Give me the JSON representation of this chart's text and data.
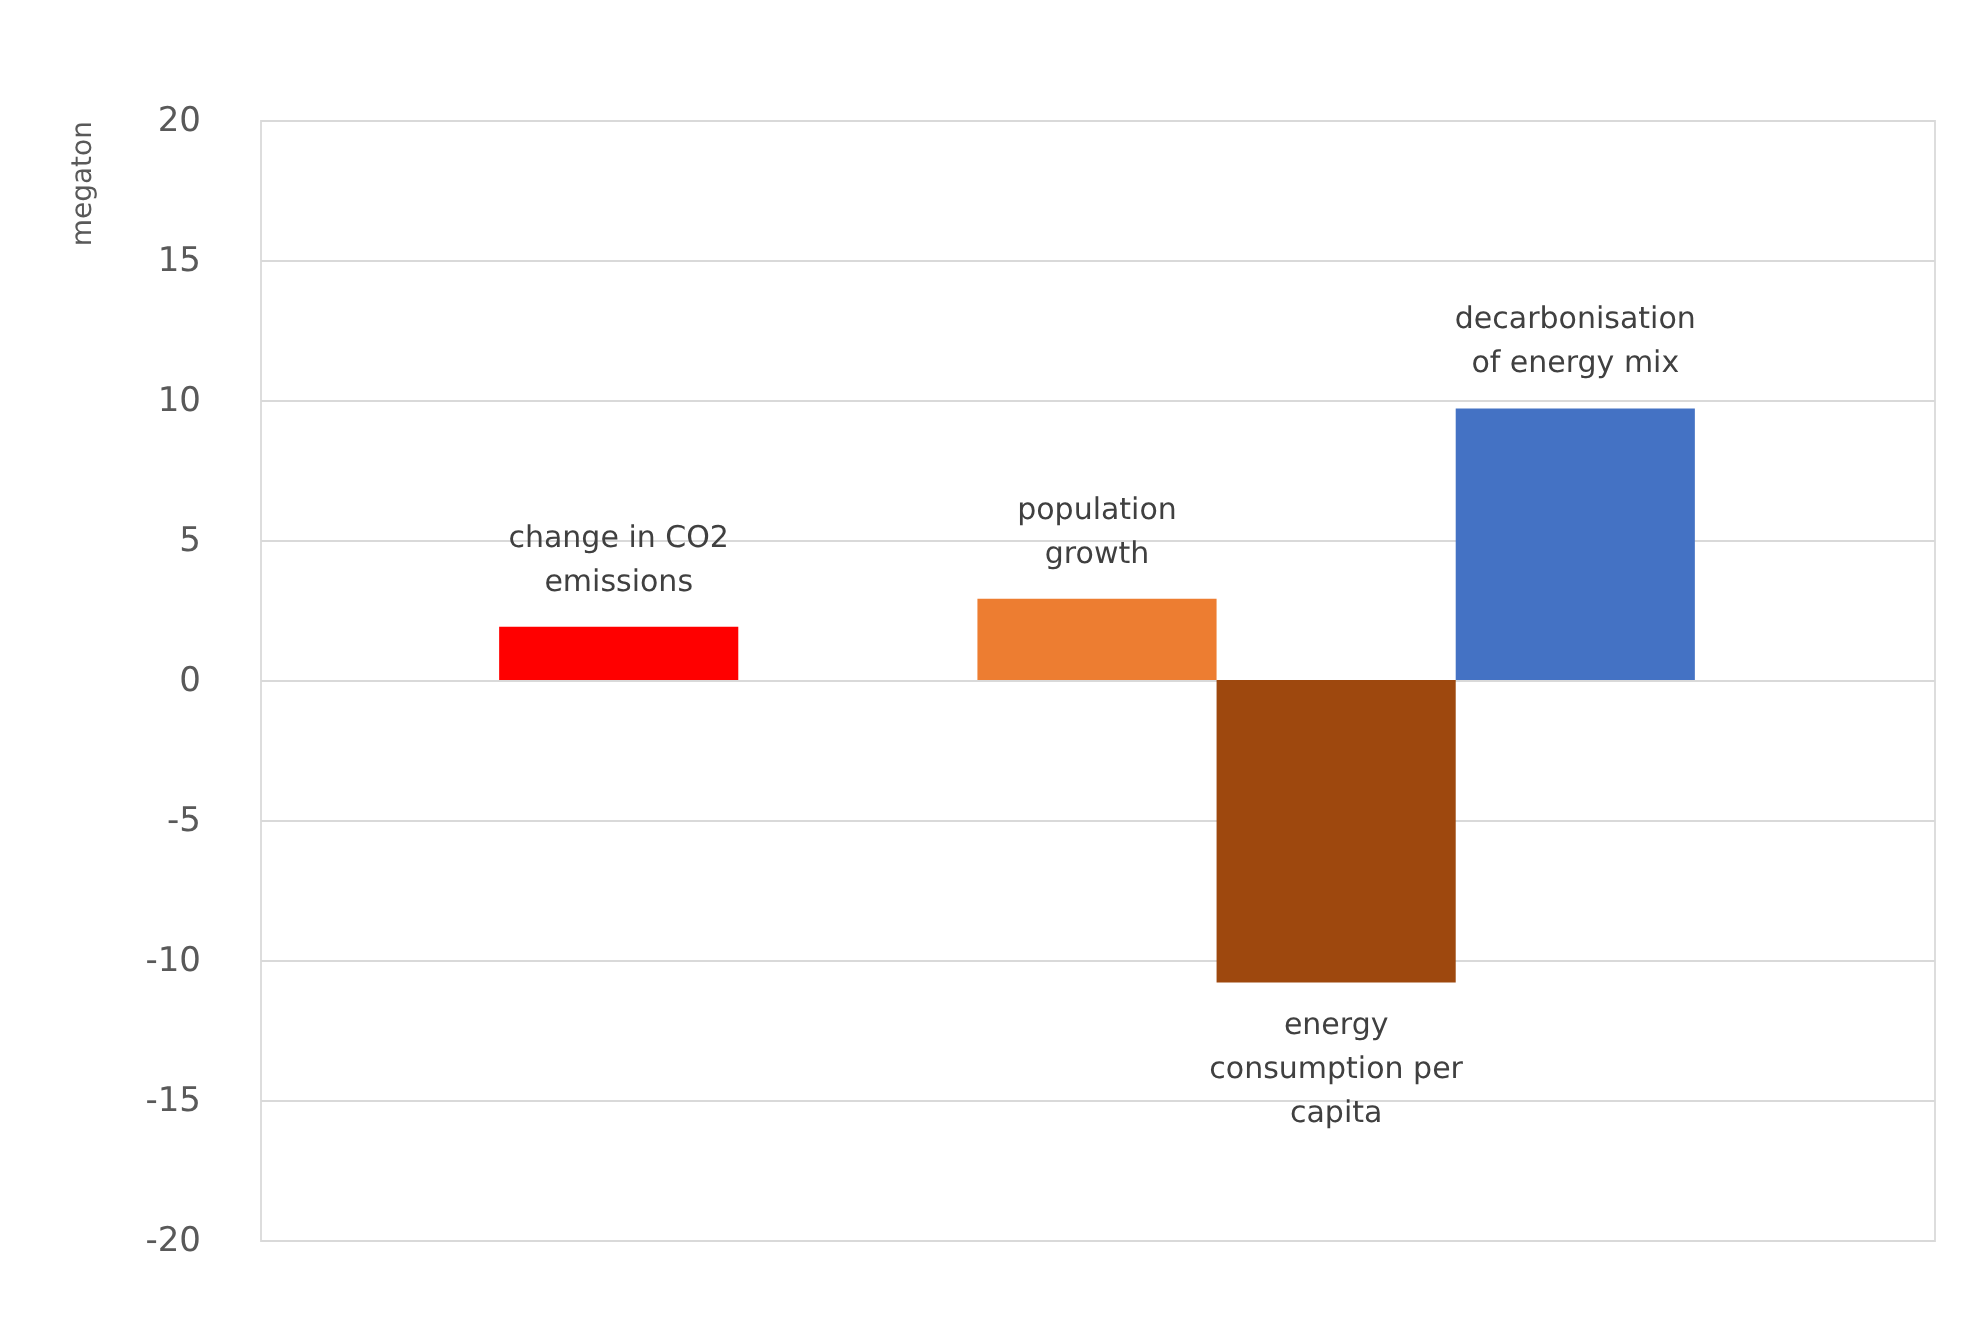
{
  "chart_data": {
    "type": "bar",
    "ylabel": "megaton",
    "categories": [
      null,
      null,
      null,
      null,
      null,
      null,
      null
    ],
    "series": [
      {
        "name": "change in CO2 emissions",
        "color": "#ff0000",
        "values": [
          null,
          1.9,
          null,
          null,
          null,
          null,
          null
        ]
      },
      {
        "name": "population growth",
        "color": "#ed7d31",
        "values": [
          null,
          null,
          null,
          2.9,
          null,
          null,
          null
        ]
      },
      {
        "name": "energy consumption per capita",
        "color": "#9e480e",
        "values": [
          null,
          null,
          null,
          null,
          -10.8,
          null,
          null
        ]
      },
      {
        "name": "decarbonisation of energy mix",
        "color": "#4472c4",
        "values": [
          null,
          null,
          null,
          null,
          null,
          9.7,
          null
        ]
      }
    ],
    "ylim": [
      -20,
      20
    ],
    "yticks": [
      -20,
      -15,
      -10,
      -5,
      0,
      5,
      10,
      15,
      20
    ],
    "grid": "y",
    "tick_labels": "y"
  }
}
